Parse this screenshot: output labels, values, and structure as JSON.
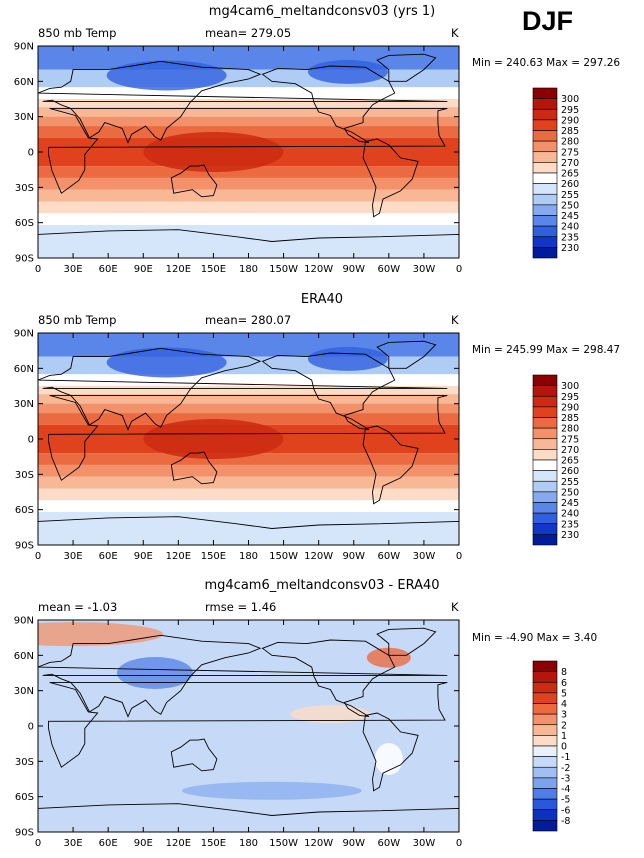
{
  "season": "DJF",
  "panels": [
    {
      "title": "mg4cam6_meltandconsv03 (yrs 1)",
      "left_label": "850 mb Temp",
      "center_label": "mean= 279.05",
      "right_label": "K",
      "min_max": "Min = 240.63 Max = 297.26",
      "colorbar_levels": [
        "300",
        "295",
        "290",
        "285",
        "280",
        "275",
        "270",
        "265",
        "260",
        "255",
        "250",
        "245",
        "240",
        "235",
        "230"
      ],
      "colorbar_colors": [
        "#8b0000",
        "#b3160a",
        "#cc2a12",
        "#e0421e",
        "#ec6a40",
        "#f3926a",
        "#f8b896",
        "#fcdcc6",
        "#ffffff",
        "#d6e6fa",
        "#afccf5",
        "#85aaf0",
        "#5a86ea",
        "#3060e0",
        "#1038c8",
        "#001c9a"
      ]
    },
    {
      "title": "ERA40",
      "left_label": "850 mb Temp",
      "center_label": "mean= 280.07",
      "right_label": "K",
      "min_max": "Min = 245.99 Max = 298.47",
      "colorbar_levels": [
        "300",
        "295",
        "290",
        "285",
        "280",
        "275",
        "270",
        "265",
        "260",
        "255",
        "250",
        "245",
        "240",
        "235",
        "230"
      ],
      "colorbar_colors": [
        "#8b0000",
        "#b3160a",
        "#cc2a12",
        "#e0421e",
        "#ec6a40",
        "#f3926a",
        "#f8b896",
        "#fcdcc6",
        "#ffffff",
        "#d6e6fa",
        "#afccf5",
        "#85aaf0",
        "#5a86ea",
        "#3060e0",
        "#1038c8",
        "#001c9a"
      ]
    },
    {
      "title": "mg4cam6_meltandconsv03 - ERA40",
      "left_label": "mean =  -1.03",
      "center_label": "rmse =   1.46",
      "right_label": "K",
      "min_max": "Min =  -4.90 Max =   3.40",
      "colorbar_levels": [
        "8",
        "6",
        "5",
        "4",
        "3",
        "2",
        "1",
        "0",
        "-1",
        "-2",
        "-3",
        "-4",
        "-5",
        "-6",
        "-8"
      ],
      "colorbar_colors": [
        "#8b0000",
        "#b3160a",
        "#cc2a12",
        "#e0421e",
        "#ec6a40",
        "#f3926a",
        "#f8b896",
        "#fcdcc6",
        "#e8f0fc",
        "#c6d9f6",
        "#a0bff2",
        "#7aa2ee",
        "#4f7ee8",
        "#2a58dc",
        "#0c30c0",
        "#001c9a"
      ]
    }
  ],
  "lat_labels": [
    "90N",
    "60N",
    "30N",
    "0",
    "30S",
    "60S",
    "90S"
  ],
  "lon_labels": [
    "0",
    "30E",
    "60E",
    "90E",
    "120E",
    "150E",
    "180",
    "150W",
    "120W",
    "90W",
    "60W",
    "30W",
    "0"
  ]
}
